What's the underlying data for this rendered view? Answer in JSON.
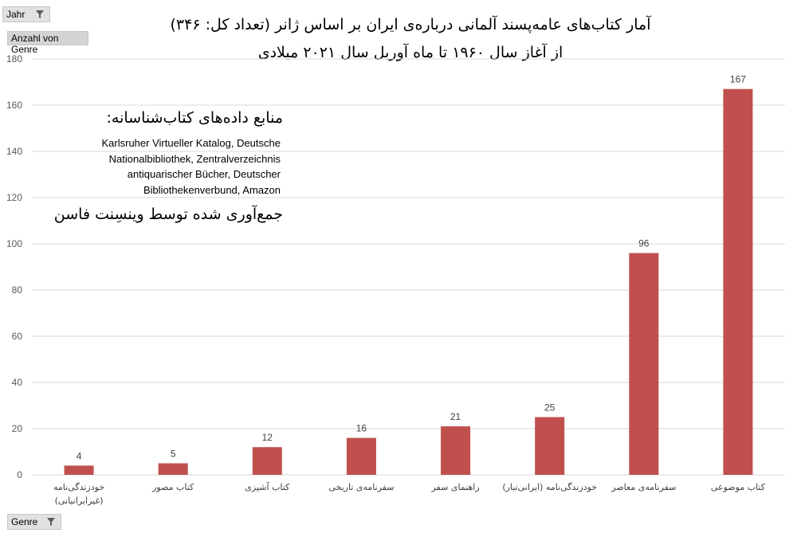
{
  "pivot": {
    "year_filter": "Jahr",
    "value_field": "Anzahl von Genre",
    "axis_field": "Genre"
  },
  "chart_data": {
    "type": "bar",
    "title": "آمار کتاب‌های عامه‌پسند آلمانی درباره‌ی ایران بر اساس ژانر (تعداد کل: ۳۴۶)",
    "subtitle": "از آغاز سال ۱۹۶۰ تا ماه آوریل سال ۲۰۲۱ میلادی",
    "categories": [
      [
        "خودزندگی‌نامه",
        "(غیرایرانیانی)"
      ],
      [
        "کتاب مصور"
      ],
      [
        "کتاب آشپزی"
      ],
      [
        "سفرنامه‌ی تاریخی"
      ],
      [
        "راهنمای سفر"
      ],
      [
        "خودزندگی‌نامه (ایرانی‌تبار)"
      ],
      [
        "سفرنامه‌ی معاصر"
      ],
      [
        "کتاب موضوعی"
      ]
    ],
    "values": [
      4,
      5,
      12,
      16,
      21,
      25,
      96,
      167
    ],
    "ylim": [
      0,
      180
    ],
    "yticks": [
      0,
      20,
      40,
      60,
      80,
      100,
      120,
      140,
      160,
      180
    ],
    "grid": true,
    "bar_color": "#c0504d",
    "legend": "none"
  },
  "annotation": {
    "sources_title": "منابع داده‌های کتاب‌شناسانه:",
    "sources_lines": [
      "Karlsruher Virtueller Katalog, Deutsche",
      "Nationalbibliothek, Zentralverzeichnis",
      "antiquarischer Bücher, Deutscher",
      "Bibliothekenverbund, Amazon"
    ],
    "credit": "جمع‌آوری شده توسط وینسِنت فاسن"
  }
}
